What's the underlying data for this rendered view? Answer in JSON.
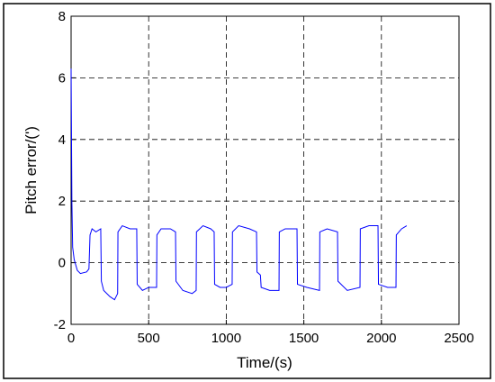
{
  "chart_data": {
    "type": "line",
    "x_label": "Time/(s)",
    "y_label": "Pitch error/(')",
    "x": [
      0,
      5,
      10,
      20,
      40,
      60,
      100,
      115,
      122,
      135,
      160,
      191,
      195,
      210,
      250,
      280,
      300,
      302,
      330,
      380,
      423,
      426,
      460,
      500,
      551,
      553,
      580,
      640,
      673,
      676,
      720,
      780,
      806,
      808,
      850,
      900,
      922,
      925,
      960,
      1000,
      1038,
      1040,
      1080,
      1150,
      1195,
      1198,
      1220,
      1225,
      1280,
      1340,
      1342,
      1380,
      1456,
      1459,
      1520,
      1601,
      1603,
      1650,
      1717,
      1720,
      1780,
      1862,
      1864,
      1920,
      1978,
      1981,
      2040,
      2094,
      2096,
      2130,
      2163
    ],
    "series": [
      {
        "color": "#0000ff",
        "values": [
          6.3,
          2.0,
          0.5,
          0.1,
          -0.25,
          -0.35,
          -0.3,
          -0.2,
          0.9,
          1.1,
          1.0,
          1.1,
          -0.6,
          -0.9,
          -1.1,
          -1.2,
          -1.0,
          1.0,
          1.2,
          1.1,
          1.1,
          -0.7,
          -0.9,
          -0.8,
          -0.8,
          0.9,
          1.1,
          1.1,
          1.0,
          -0.6,
          -0.9,
          -1.0,
          -0.9,
          1.0,
          1.2,
          1.1,
          1.0,
          -0.7,
          -0.8,
          -0.8,
          -0.7,
          1.0,
          1.2,
          1.1,
          1.0,
          -0.3,
          -0.4,
          -0.8,
          -0.9,
          -0.9,
          1.0,
          1.1,
          1.1,
          -0.7,
          -0.8,
          -0.9,
          1.0,
          1.1,
          1.0,
          -0.6,
          -0.9,
          -0.8,
          1.1,
          1.2,
          1.2,
          -0.7,
          -0.8,
          -0.8,
          0.9,
          1.1,
          1.2
        ]
      }
    ],
    "xlim": [
      0,
      2500
    ],
    "xticks": [
      0,
      500,
      1000,
      1500,
      2000,
      2500
    ],
    "ylim": [
      -2,
      8
    ],
    "yticks": [
      -2,
      0,
      2,
      4,
      6,
      8
    ],
    "grid": true
  }
}
